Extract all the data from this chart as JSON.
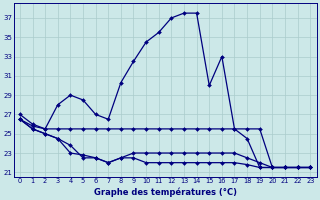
{
  "xlabel": "Graphe des températures (°C)",
  "background_color": "#cce8e8",
  "line_color": "#00007f",
  "grid_color": "#aacccc",
  "ylim_min": 20.5,
  "ylim_max": 38.5,
  "yticks": [
    21,
    23,
    25,
    27,
    29,
    31,
    33,
    35,
    37
  ],
  "xlim_min": -0.5,
  "xlim_max": 23.5,
  "xticks": [
    0,
    1,
    2,
    3,
    4,
    5,
    6,
    7,
    8,
    9,
    10,
    11,
    12,
    13,
    14,
    15,
    16,
    17,
    18,
    19,
    20,
    21,
    22,
    23
  ],
  "series": [
    {
      "x": [
        0,
        1,
        2,
        3,
        4,
        5,
        6,
        7,
        8,
        9,
        10,
        11,
        12,
        13,
        14,
        15,
        16,
        17,
        18,
        19,
        20,
        21,
        22,
        23
      ],
      "y": [
        27.0,
        26.0,
        25.5,
        28.0,
        29.0,
        28.5,
        27.0,
        26.5,
        30.3,
        32.5,
        34.5,
        35.5,
        37.0,
        37.5,
        37.5,
        30.0,
        33.0,
        25.5,
        24.5,
        21.5,
        21.5,
        21.5,
        21.5,
        21.5
      ]
    },
    {
      "x": [
        0,
        1,
        2,
        3,
        4,
        5,
        6,
        7,
        8,
        9,
        10,
        11,
        12,
        13,
        14,
        15,
        16,
        17,
        18,
        19,
        20,
        21,
        22,
        23
      ],
      "y": [
        26.5,
        25.8,
        25.5,
        25.5,
        25.5,
        25.5,
        25.5,
        25.5,
        25.5,
        25.5,
        25.5,
        25.5,
        25.5,
        25.5,
        25.5,
        25.5,
        25.5,
        25.5,
        25.5,
        25.5,
        21.5,
        21.5,
        21.5,
        21.5
      ]
    },
    {
      "x": [
        0,
        1,
        2,
        3,
        4,
        5,
        6,
        7,
        8,
        9,
        10,
        11,
        12,
        13,
        14,
        15,
        16,
        17,
        18,
        19,
        20,
        21,
        22,
        23
      ],
      "y": [
        26.5,
        25.5,
        25.0,
        24.5,
        23.0,
        22.8,
        22.5,
        22.0,
        22.5,
        23.0,
        23.0,
        23.0,
        23.0,
        23.0,
        23.0,
        23.0,
        23.0,
        23.0,
        22.5,
        22.0,
        21.5,
        21.5,
        21.5,
        21.5
      ]
    },
    {
      "x": [
        0,
        1,
        2,
        3,
        4,
        5,
        6,
        7,
        8,
        9,
        10,
        11,
        12,
        13,
        14,
        15,
        16,
        17,
        18,
        19,
        20,
        21,
        22,
        23
      ],
      "y": [
        26.5,
        25.5,
        25.0,
        24.5,
        23.8,
        22.5,
        22.5,
        22.0,
        22.5,
        22.5,
        22.0,
        22.0,
        22.0,
        22.0,
        22.0,
        22.0,
        22.0,
        22.0,
        21.8,
        21.5,
        21.5,
        21.5,
        21.5,
        21.5
      ]
    }
  ]
}
